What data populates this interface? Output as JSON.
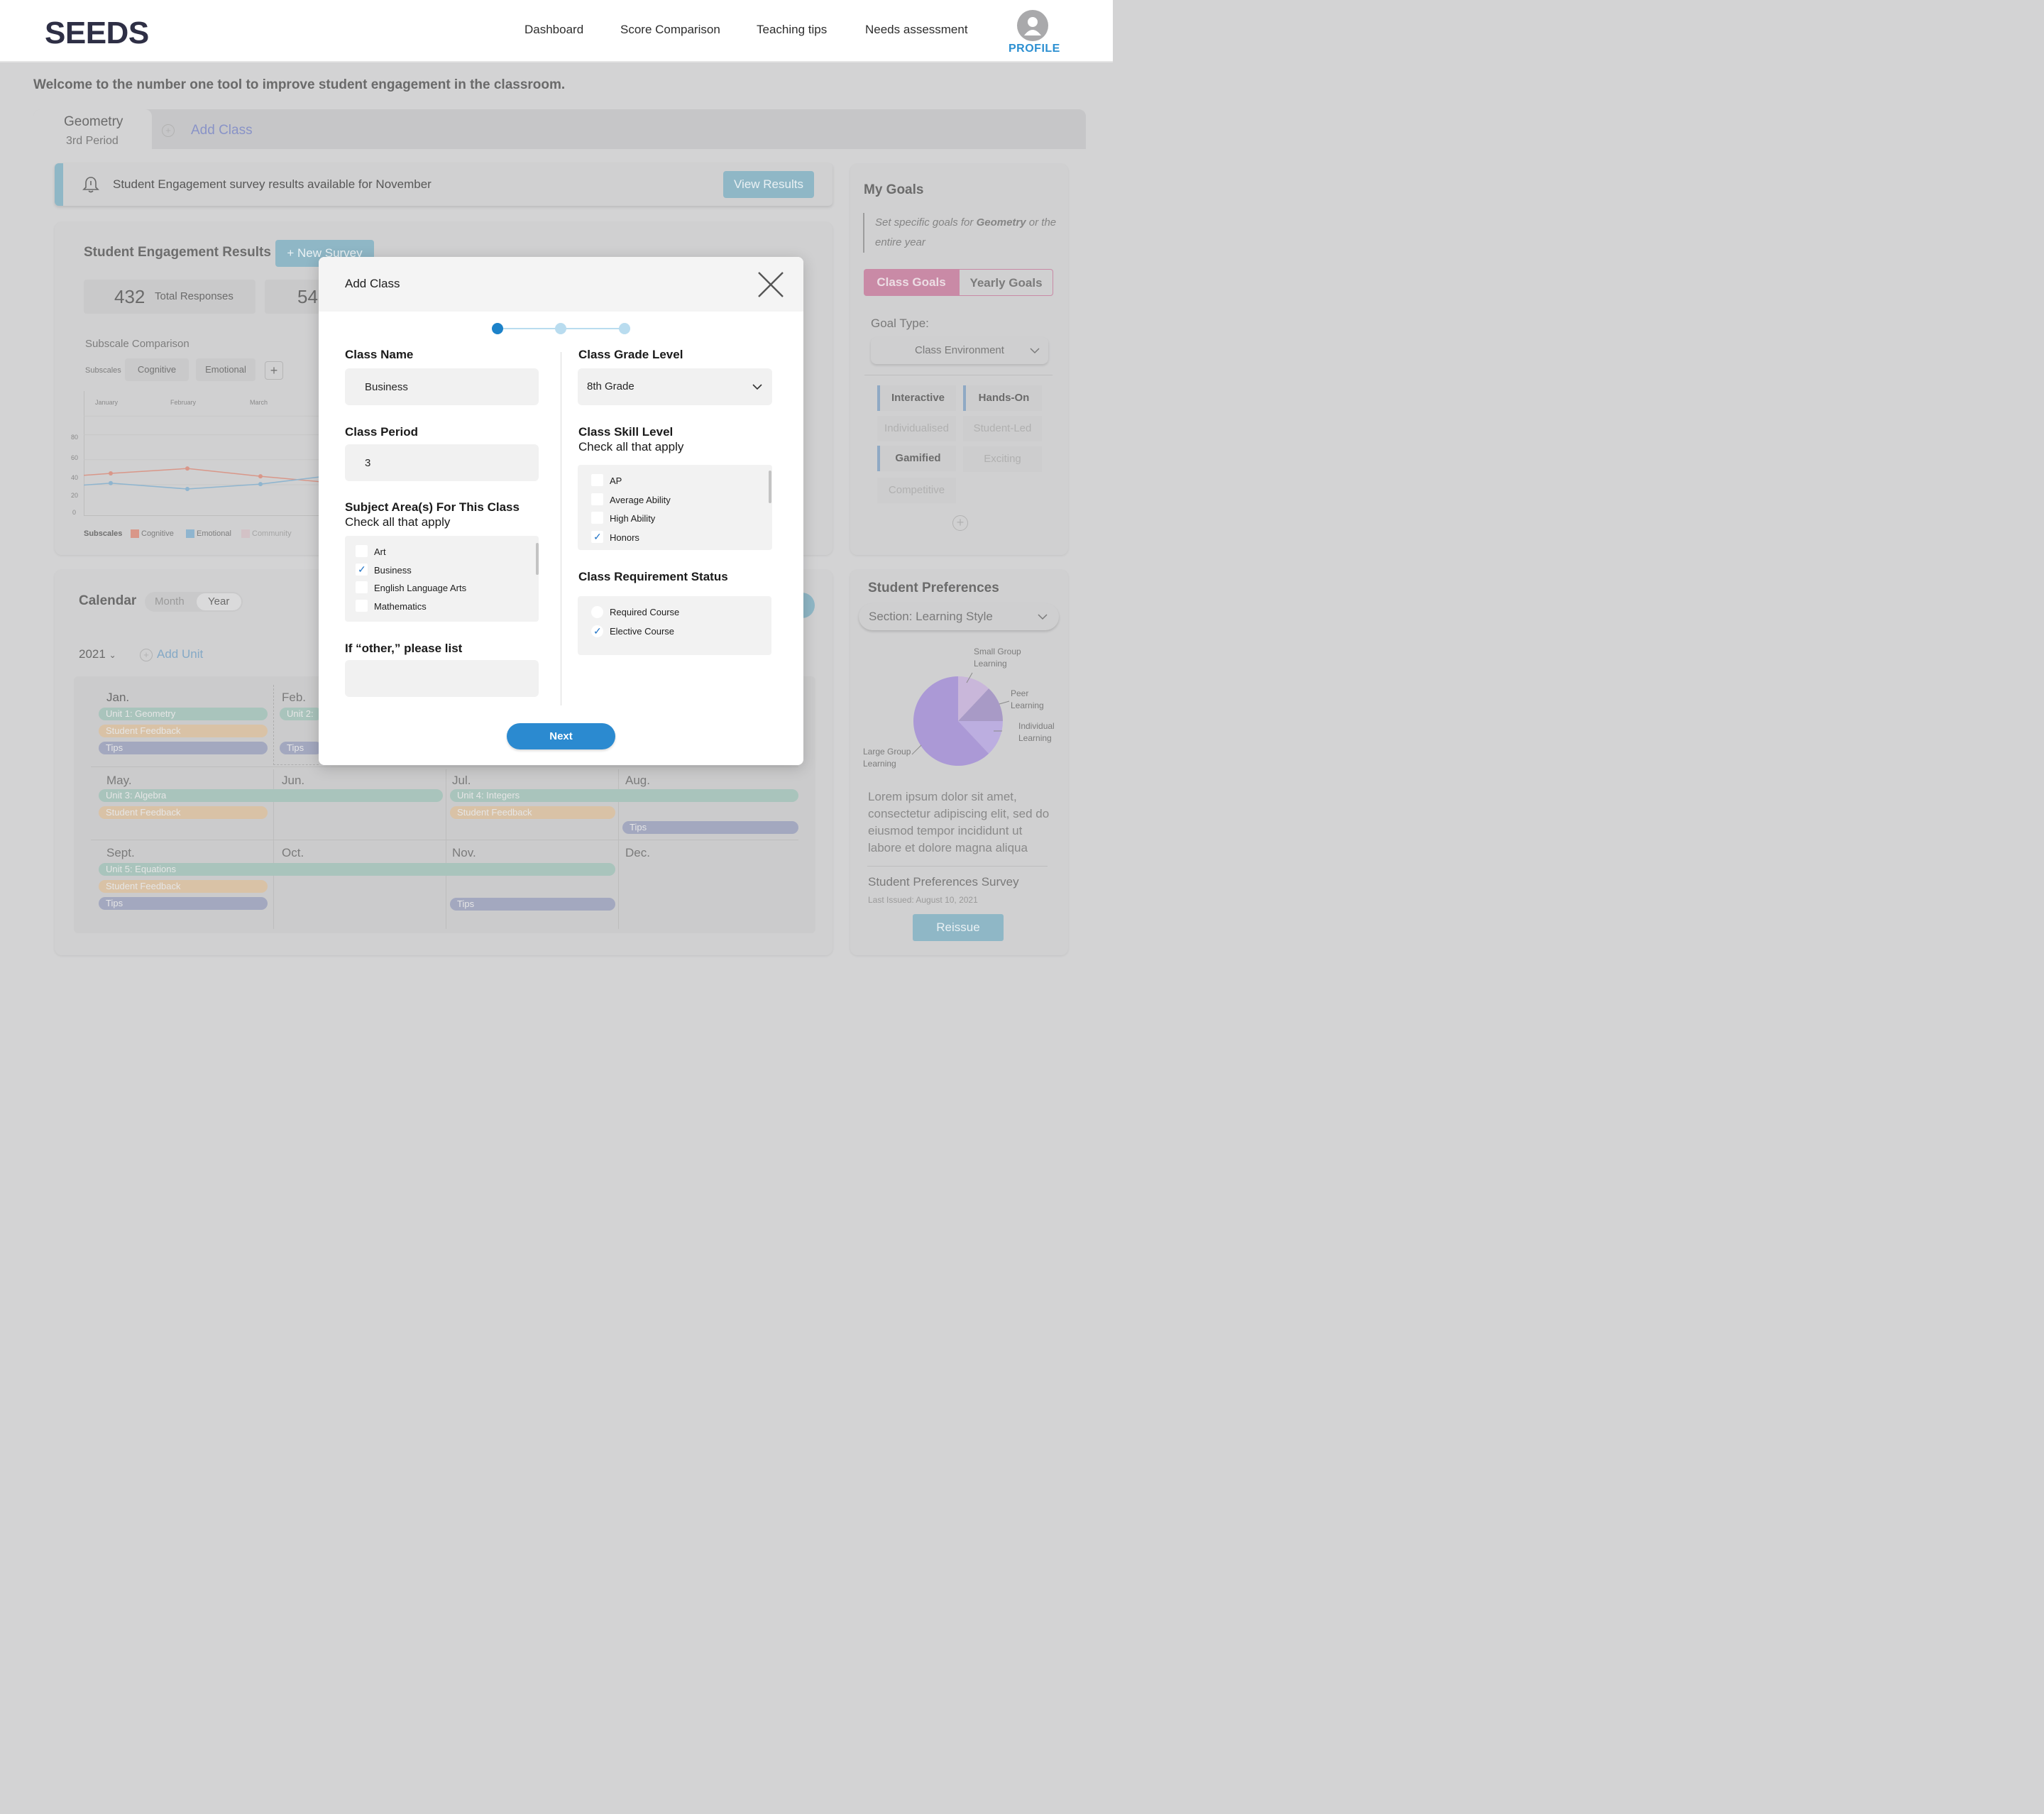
{
  "app": {
    "logo": "SEEDS",
    "nav": [
      "Dashboard",
      "Score Comparison",
      "Teaching tips",
      "Needs assessment"
    ],
    "profile_label": "PROFILE"
  },
  "page": {
    "welcome": "Welcome to the number one tool to improve student engagement in the classroom.",
    "class_tab": {
      "title": "Geometry",
      "period": "3rd Period"
    },
    "add_class_tab": "Add Class",
    "alert": {
      "text": "Student Engagement survey results available for November",
      "button": "View Results",
      "icon": "bell-icon"
    }
  },
  "engagement": {
    "title": "Student Engagement Results",
    "new_survey": "+ New Survey",
    "total_responses_value": "432",
    "total_responses_label": "Total Responses",
    "second_stat_value": "54",
    "subscale_title": "Subscale Comparison",
    "subscales_label": "Subscales",
    "subscale_chips": [
      "Cognitive",
      "Emotional"
    ],
    "months": [
      "January",
      "February",
      "March"
    ],
    "y_ticks": [
      "80",
      "60",
      "40",
      "20",
      "0"
    ],
    "legend_title": "Subscales",
    "legend": [
      {
        "name": "Cognitive",
        "color": "#d99789"
      },
      {
        "name": "Emotional",
        "color": "#8fb5cf"
      },
      {
        "name": "Community",
        "color": "#d3c2c6"
      }
    ],
    "chart_data": {
      "type": "line",
      "categories": [
        "January",
        "February",
        "March"
      ],
      "ylim": [
        0,
        80
      ],
      "series": [
        {
          "name": "Cognitive",
          "values": [
            40,
            45,
            37
          ]
        },
        {
          "name": "Emotional",
          "values": [
            30,
            24,
            29
          ]
        }
      ]
    }
  },
  "calendar": {
    "title": "Calendar",
    "toggle": [
      "Month",
      "Year"
    ],
    "year": "2021",
    "add_unit": "Add Unit",
    "months": [
      "Jan.",
      "Feb.",
      "May.",
      "Jun.",
      "Jul.",
      "Aug.",
      "Sept.",
      "Oct.",
      "Nov.",
      "Dec."
    ],
    "bars": {
      "unit1": "Unit 1: Geometry",
      "unit2": "Unit 2:",
      "unit3": "Unit 3: Algebra",
      "unit4": "Unit 4: Integers",
      "unit5": "Unit 5: Equations",
      "feedback": "Student Feedback",
      "tips": "Tips"
    }
  },
  "goals": {
    "title": "My Goals",
    "desc_prefix": "Set specific goals for ",
    "desc_bold": "Geometry",
    "desc_suffix": " or the entire year",
    "tabs": [
      "Class Goals",
      "Yearly Goals"
    ],
    "goal_type_label": "Goal Type:",
    "goal_type_value": "Class Environment",
    "chips": [
      "Interactive",
      "Hands-On",
      "Individualised",
      "Student-Led",
      "Gamified",
      "Exciting",
      "Competitive"
    ]
  },
  "preferences": {
    "title": "Student Preferences",
    "section": "Section: Learning Style",
    "pie_labels": [
      "Small Group Learning",
      "Peer Learning",
      "Individual Learning",
      "Large Group Learning"
    ],
    "pie_data": [
      {
        "label": "Small Group Learning",
        "value": 12,
        "color": "#c9b7da"
      },
      {
        "label": "Peer Learning",
        "value": 13,
        "color": "#a89ac6"
      },
      {
        "label": "Individual Learning",
        "value": 13,
        "color": "#bcaee0"
      },
      {
        "label": "Large Group Learning",
        "value": 62,
        "color": "#ab99d6"
      }
    ],
    "lorem": "Lorem ipsum dolor sit amet, consectetur adipiscing elit, sed do eiusmod tempor incididunt ut labore et dolore magna aliqua",
    "survey_name": "Student Preferences Survey",
    "last_issued": "Last Issued: August 10, 2021",
    "reissue": "Reissue"
  },
  "modal": {
    "title": "Add Class",
    "steps": 3,
    "current_step": 1,
    "class_name_label": "Class Name",
    "class_name_value": "Business",
    "class_period_label": "Class Period",
    "class_period_value": "3",
    "subject_label": "Subject Area(s) For This Class",
    "subject_sub": "Check all that apply",
    "subjects": [
      {
        "label": "Art",
        "checked": false
      },
      {
        "label": "Business",
        "checked": true
      },
      {
        "label": "English Language Arts",
        "checked": false
      },
      {
        "label": "Mathematics",
        "checked": false
      }
    ],
    "other_label": "If “other,” please list",
    "other_value": "",
    "grade_label": "Class Grade Level",
    "grade_value": "8th Grade",
    "skill_label": "Class Skill Level",
    "skill_sub": "Check all that apply",
    "skills": [
      {
        "label": "AP",
        "checked": false
      },
      {
        "label": "Average Ability",
        "checked": false
      },
      {
        "label": "High Ability",
        "checked": false
      },
      {
        "label": "Honors",
        "checked": true
      }
    ],
    "requirement_label": "Class Requirement Status",
    "requirements": [
      {
        "label": "Required Course",
        "checked": false
      },
      {
        "label": "Elective Course",
        "checked": true
      }
    ],
    "next": "Next",
    "accent": "#2b8ad0"
  }
}
